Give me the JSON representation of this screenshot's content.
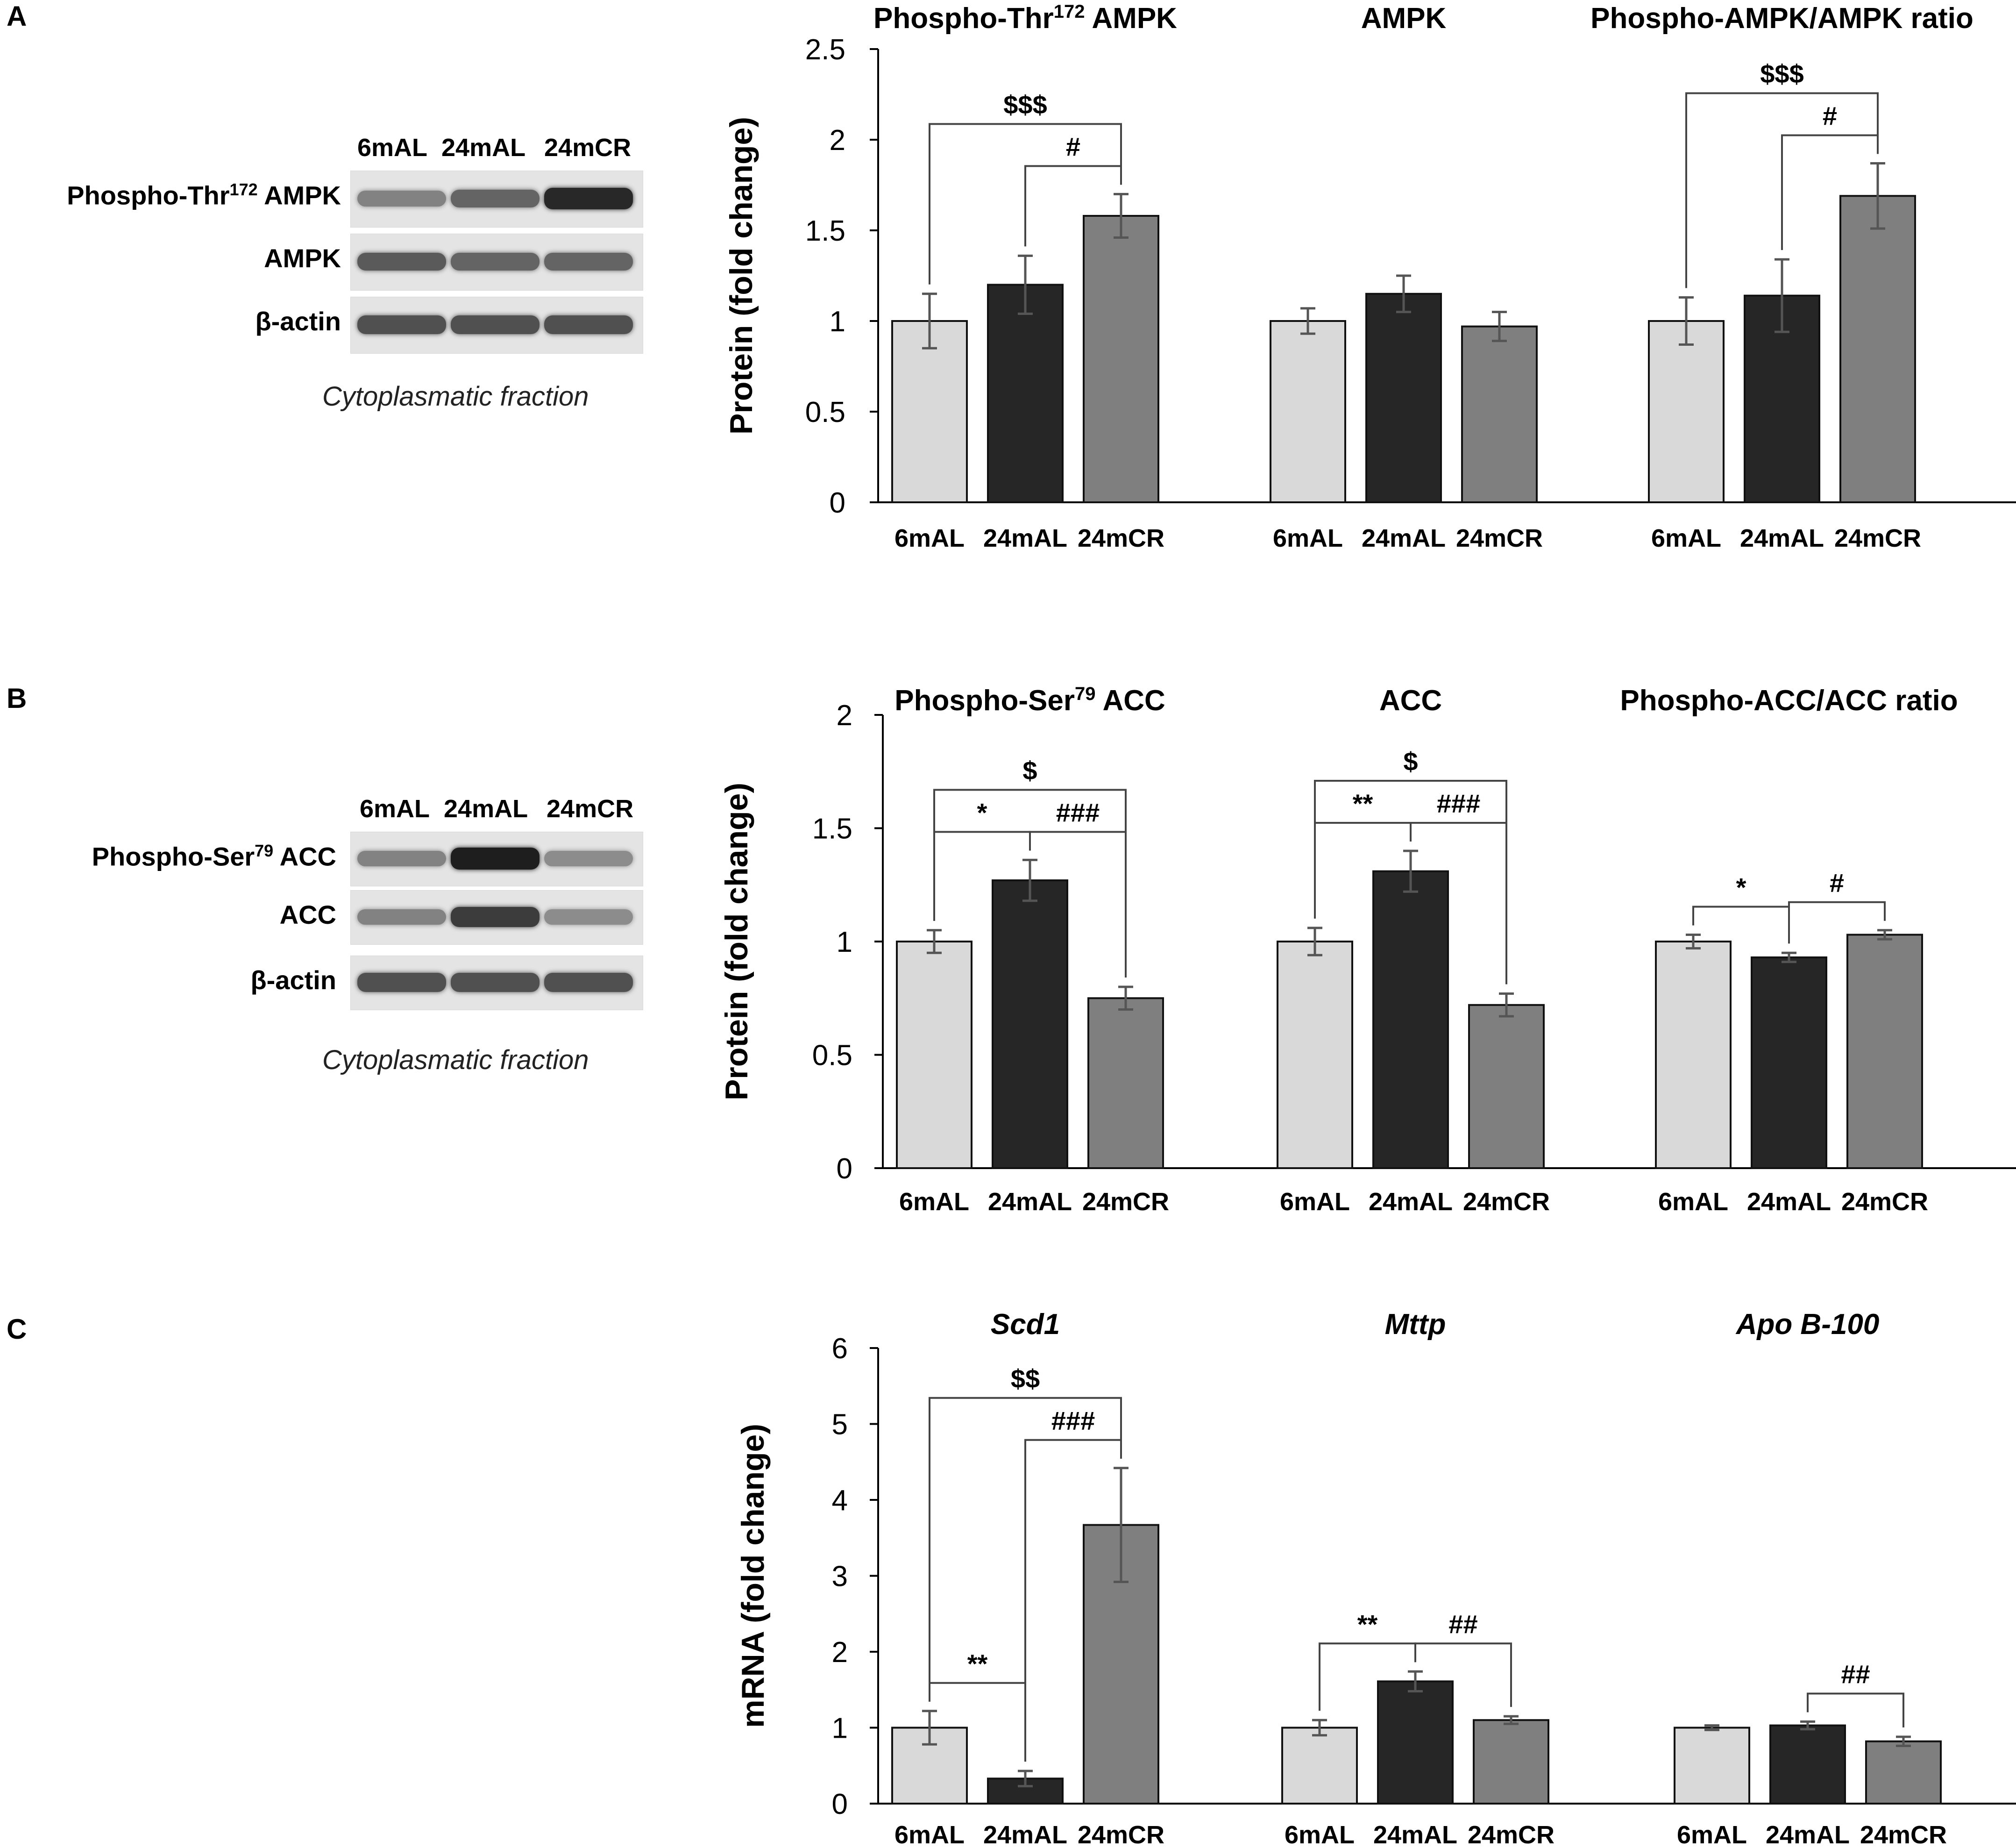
{
  "colors": {
    "6mAL": "#d9d9d9",
    "24mAL": "#262626",
    "24mCR": "#7f7f7f",
    "axis": "#000000",
    "error": "#555555"
  },
  "panels": [
    {
      "letter": "A",
      "blot": {
        "columns": [
          "6mAL",
          "24mAL",
          "24mCR"
        ],
        "rows": [
          {
            "label": "Phospho-Thr",
            "sup": "172",
            "label_after": " AMPK",
            "intensity": [
              0.45,
              0.6,
              0.9
            ]
          },
          {
            "label": "AMPK",
            "sup": "",
            "label_after": "",
            "intensity": [
              0.65,
              0.6,
              0.6
            ]
          },
          {
            "label": "β-actin",
            "sup": "",
            "label_after": "",
            "intensity": [
              0.7,
              0.7,
              0.7
            ]
          }
        ],
        "fraction": "Cytoplasmatic fraction"
      }
    },
    {
      "letter": "B",
      "blot": {
        "columns": [
          "6mAL",
          "24mAL",
          "24mCR"
        ],
        "rows": [
          {
            "label": "Phospho-Ser",
            "sup": "79",
            "label_after": " ACC",
            "intensity": [
              0.45,
              0.95,
              0.4
            ]
          },
          {
            "label": "ACC",
            "sup": "",
            "label_after": "",
            "intensity": [
              0.45,
              0.8,
              0.4
            ]
          },
          {
            "label": "β-actin",
            "sup": "",
            "label_after": "",
            "intensity": [
              0.7,
              0.7,
              0.7
            ]
          }
        ],
        "fraction": "Cytoplasmatic fraction"
      }
    },
    {
      "letter": "C",
      "blot": null
    }
  ],
  "chart_data": [
    {
      "type": "bar",
      "panel": "A",
      "ylabel": "Protein (fold change)",
      "ylim": [
        0,
        2.5
      ],
      "yticks": [
        "0",
        "0.5",
        "1",
        "1.5",
        "2",
        "2.5"
      ],
      "categories": [
        "6mAL",
        "24mAL",
        "24mCR"
      ],
      "groups": [
        {
          "title": "Phospho-Thr",
          "sup": "172",
          "title_after": " AMPK",
          "italic": false,
          "values": [
            1.0,
            1.2,
            1.58
          ],
          "errors": [
            0.15,
            0.16,
            0.12
          ],
          "annotations": [
            {
              "from": 0,
              "to": 2,
              "label": "$$$"
            },
            {
              "from": 1,
              "to": 2,
              "label": "#"
            }
          ]
        },
        {
          "title": "AMPK",
          "sup": "",
          "title_after": "",
          "italic": false,
          "values": [
            1.0,
            1.15,
            0.97
          ],
          "errors": [
            0.07,
            0.1,
            0.08
          ],
          "annotations": []
        },
        {
          "title": "Phospho-AMPK/AMPK ratio",
          "sup": "",
          "title_after": "",
          "italic": false,
          "values": [
            1.0,
            1.14,
            1.69
          ],
          "errors": [
            0.13,
            0.2,
            0.18
          ],
          "annotations": [
            {
              "from": 0,
              "to": 2,
              "label": "$$$"
            },
            {
              "from": 1,
              "to": 2,
              "label": "#"
            }
          ]
        }
      ]
    },
    {
      "type": "bar",
      "panel": "B",
      "ylabel": "Protein (fold change)",
      "ylim": [
        0,
        2
      ],
      "yticks": [
        "0",
        "0.5",
        "1",
        "1.5",
        "2"
      ],
      "categories": [
        "6mAL",
        "24mAL",
        "24mCR"
      ],
      "groups": [
        {
          "title": "Phospho-Ser",
          "sup": "79",
          "title_after": " ACC",
          "italic": false,
          "values": [
            1.0,
            1.27,
            0.75
          ],
          "errors": [
            0.05,
            0.09,
            0.05
          ],
          "annotations": [
            {
              "from": 0,
              "to": 2,
              "label": "$"
            },
            {
              "from": 0,
              "to": 1,
              "label": "*"
            },
            {
              "from": 1,
              "to": 2,
              "label": "###"
            }
          ]
        },
        {
          "title": "ACC",
          "sup": "",
          "title_after": "",
          "italic": false,
          "values": [
            1.0,
            1.31,
            0.72
          ],
          "errors": [
            0.06,
            0.09,
            0.05
          ],
          "annotations": [
            {
              "from": 0,
              "to": 2,
              "label": "$"
            },
            {
              "from": 0,
              "to": 1,
              "label": "**"
            },
            {
              "from": 1,
              "to": 2,
              "label": "###"
            }
          ]
        },
        {
          "title": "Phospho-ACC/ACC ratio",
          "sup": "",
          "title_after": "",
          "italic": false,
          "values": [
            1.0,
            0.93,
            1.03
          ],
          "errors": [
            0.03,
            0.02,
            0.02
          ],
          "annotations": [
            {
              "from": 0,
              "to": 1,
              "label": "*"
            },
            {
              "from": 1,
              "to": 2,
              "label": "#"
            }
          ]
        }
      ]
    },
    {
      "type": "bar",
      "panel": "C",
      "ylabel": "mRNA (fold change)",
      "ylim": [
        0,
        6
      ],
      "yticks": [
        "0",
        "1",
        "2",
        "3",
        "4",
        "5",
        "6"
      ],
      "categories": [
        "6mAL",
        "24mAL",
        "24mCR"
      ],
      "groups": [
        {
          "title": "Scd1",
          "sup": "",
          "title_after": "",
          "italic": true,
          "values": [
            1.0,
            0.33,
            3.67
          ],
          "errors": [
            0.22,
            0.1,
            0.75
          ],
          "annotations": [
            {
              "from": 0,
              "to": 2,
              "label": "$$"
            },
            {
              "from": 1,
              "to": 2,
              "label": "###"
            },
            {
              "from": 0,
              "to": 1,
              "label": "**"
            }
          ]
        },
        {
          "title": "Mttp",
          "sup": "",
          "title_after": "",
          "italic": true,
          "values": [
            1.0,
            1.61,
            1.1
          ],
          "errors": [
            0.1,
            0.13,
            0.05
          ],
          "annotations": [
            {
              "from": 0,
              "to": 1,
              "label": "**"
            },
            {
              "from": 1,
              "to": 2,
              "label": "##"
            }
          ]
        },
        {
          "title": "Apo B-100",
          "sup": "",
          "title_after": "",
          "italic": true,
          "values": [
            1.0,
            1.03,
            0.82
          ],
          "errors": [
            0.03,
            0.05,
            0.06
          ],
          "annotations": [
            {
              "from": 1,
              "to": 2,
              "label": "##"
            }
          ]
        }
      ]
    }
  ]
}
